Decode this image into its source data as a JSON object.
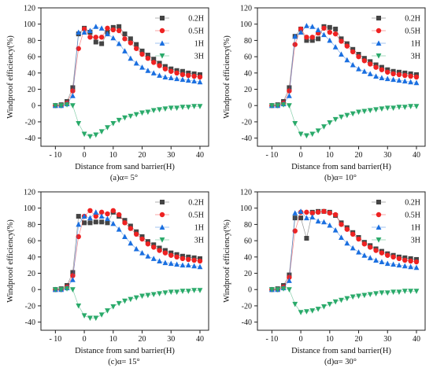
{
  "figure": {
    "colors": {
      "s02H": "#444444",
      "s05H": "#ee2222",
      "s1H": "#1a6fe0",
      "s3H": "#2aaa6a"
    }
  },
  "chart_data": [
    {
      "type": "line",
      "panel": "a",
      "caption": "(a)α= 5°",
      "xlabel": "Distance from sand barrier(H)",
      "ylabel": "Windproof efficiency(%)",
      "xlim": [
        -15,
        43
      ],
      "ylim": [
        -50,
        120
      ],
      "xticks": [
        -10,
        0,
        10,
        20,
        30,
        40
      ],
      "yticks": [
        -40,
        -20,
        0,
        20,
        40,
        60,
        80,
        100,
        120
      ],
      "legend_position": "top-right",
      "x": [
        -10,
        -8,
        -6,
        -4,
        -2,
        0,
        2,
        4,
        6,
        8,
        10,
        12,
        14,
        16,
        18,
        20,
        22,
        24,
        26,
        28,
        30,
        32,
        34,
        36,
        38,
        40
      ],
      "series": [
        {
          "name": "0.2H",
          "marker": "square",
          "color": "#444444",
          "values": [
            0,
            1,
            5,
            22,
            88,
            95,
            90,
            78,
            76,
            90,
            96,
            97,
            88,
            82,
            75,
            67,
            62,
            57,
            52,
            48,
            45,
            43,
            42,
            40,
            39,
            38
          ]
        },
        {
          "name": "0.5H",
          "marker": "circle",
          "color": "#ee2222",
          "values": [
            0,
            0,
            3,
            18,
            70,
            94,
            84,
            84,
            84,
            95,
            93,
            92,
            82,
            77,
            70,
            63,
            58,
            53,
            49,
            45,
            42,
            40,
            38,
            37,
            36,
            35
          ]
        },
        {
          "name": "1H",
          "marker": "triangle-up",
          "color": "#1a6fe0",
          "values": [
            0,
            0,
            2,
            12,
            90,
            90,
            92,
            97,
            95,
            88,
            83,
            76,
            67,
            58,
            52,
            47,
            43,
            40,
            37,
            35,
            34,
            33,
            32,
            31,
            30,
            29
          ]
        },
        {
          "name": "3H",
          "marker": "triangle-down",
          "color": "#2aaa6a",
          "values": [
            0,
            0,
            1,
            0,
            -22,
            -35,
            -38,
            -36,
            -32,
            -27,
            -22,
            -18,
            -15,
            -13,
            -11,
            -9,
            -8,
            -6,
            -5,
            -4,
            -3,
            -3,
            -2,
            -2,
            -1,
            -1
          ]
        }
      ]
    },
    {
      "type": "line",
      "panel": "b",
      "caption": "(b)α= 10°",
      "xlabel": "Distance from sand barrier(H)",
      "ylabel": "Windproof efficiency(%)",
      "xlim": [
        -15,
        43
      ],
      "ylim": [
        -50,
        120
      ],
      "xticks": [
        -10,
        0,
        10,
        20,
        30,
        40
      ],
      "yticks": [
        -40,
        -20,
        0,
        20,
        40,
        60,
        80,
        100,
        120
      ],
      "legend_position": "top-right",
      "x": [
        -10,
        -8,
        -6,
        -4,
        -2,
        0,
        2,
        4,
        6,
        8,
        10,
        12,
        14,
        16,
        18,
        20,
        22,
        24,
        26,
        28,
        30,
        32,
        34,
        36,
        38,
        40
      ],
      "series": [
        {
          "name": "0.2H",
          "marker": "square",
          "color": "#444444",
          "values": [
            0,
            1,
            5,
            22,
            85,
            94,
            80,
            80,
            82,
            97,
            96,
            94,
            82,
            76,
            69,
            63,
            58,
            54,
            50,
            47,
            44,
            42,
            41,
            40,
            39,
            38
          ]
        },
        {
          "name": "0.5H",
          "marker": "circle",
          "color": "#ee2222",
          "values": [
            0,
            0,
            3,
            18,
            75,
            94,
            84,
            84,
            89,
            95,
            90,
            88,
            79,
            73,
            66,
            60,
            55,
            51,
            47,
            44,
            41,
            39,
            38,
            37,
            36,
            35
          ]
        },
        {
          "name": "1H",
          "marker": "triangle-up",
          "color": "#1a6fe0",
          "values": [
            0,
            0,
            2,
            12,
            85,
            90,
            98,
            97,
            93,
            87,
            80,
            72,
            63,
            56,
            50,
            45,
            42,
            39,
            36,
            34,
            33,
            32,
            31,
            30,
            29,
            28
          ]
        },
        {
          "name": "3H",
          "marker": "triangle-down",
          "color": "#2aaa6a",
          "values": [
            0,
            0,
            1,
            0,
            -22,
            -35,
            -37,
            -35,
            -31,
            -26,
            -21,
            -17,
            -14,
            -12,
            -10,
            -8,
            -7,
            -6,
            -5,
            -4,
            -3,
            -3,
            -2,
            -2,
            -1,
            -1
          ]
        }
      ]
    },
    {
      "type": "line",
      "panel": "c",
      "caption": "(c)α= 15°",
      "xlabel": "Distance from sand barrier(H)",
      "ylabel": "Windproof efficiency(%)",
      "xlim": [
        -15,
        43
      ],
      "ylim": [
        -50,
        120
      ],
      "xticks": [
        -10,
        0,
        10,
        20,
        30,
        40
      ],
      "yticks": [
        -40,
        -20,
        0,
        20,
        40,
        60,
        80,
        100,
        120
      ],
      "legend_position": "top-right",
      "x": [
        -10,
        -8,
        -6,
        -4,
        -2,
        0,
        2,
        4,
        6,
        8,
        10,
        12,
        14,
        16,
        18,
        20,
        22,
        24,
        26,
        28,
        30,
        32,
        34,
        36,
        38,
        40
      ],
      "series": [
        {
          "name": "0.2H",
          "marker": "square",
          "color": "#444444",
          "values": [
            0,
            1,
            5,
            21,
            90,
            82,
            82,
            83,
            83,
            82,
            95,
            90,
            85,
            78,
            71,
            65,
            59,
            55,
            51,
            48,
            45,
            43,
            41,
            40,
            39,
            38
          ]
        },
        {
          "name": "0.5H",
          "marker": "circle",
          "color": "#ee2222",
          "values": [
            0,
            0,
            3,
            17,
            65,
            90,
            97,
            90,
            95,
            93,
            97,
            92,
            82,
            75,
            68,
            62,
            56,
            52,
            48,
            45,
            42,
            40,
            38,
            37,
            36,
            35
          ]
        },
        {
          "name": "1H",
          "marker": "triangle-up",
          "color": "#1a6fe0",
          "values": [
            0,
            0,
            2,
            12,
            80,
            90,
            88,
            95,
            90,
            87,
            81,
            74,
            65,
            57,
            50,
            45,
            41,
            38,
            35,
            33,
            32,
            31,
            30,
            30,
            29,
            28
          ]
        },
        {
          "name": "3H",
          "marker": "triangle-down",
          "color": "#2aaa6a",
          "values": [
            0,
            0,
            1,
            0,
            -20,
            -32,
            -35,
            -35,
            -31,
            -26,
            -21,
            -17,
            -14,
            -12,
            -10,
            -8,
            -7,
            -6,
            -5,
            -4,
            -3,
            -3,
            -2,
            -2,
            -1,
            -1
          ]
        }
      ]
    },
    {
      "type": "line",
      "panel": "d",
      "caption": "(d)α= 30°",
      "xlabel": "Distance from sand barrier(H)",
      "ylabel": "Windproof efficiency(%)",
      "xlim": [
        -15,
        43
      ],
      "ylim": [
        -50,
        120
      ],
      "xticks": [
        -10,
        0,
        10,
        20,
        30,
        40
      ],
      "yticks": [
        -40,
        -20,
        0,
        20,
        40,
        60,
        80,
        100,
        120
      ],
      "legend_position": "top-right",
      "x": [
        -10,
        -8,
        -6,
        -4,
        -2,
        0,
        2,
        4,
        6,
        8,
        10,
        12,
        14,
        16,
        18,
        20,
        22,
        24,
        26,
        28,
        30,
        32,
        34,
        36,
        38,
        40
      ],
      "series": [
        {
          "name": "0.2H",
          "marker": "square",
          "color": "#444444",
          "values": [
            0,
            1,
            5,
            18,
            88,
            88,
            63,
            95,
            96,
            96,
            95,
            91,
            82,
            76,
            70,
            64,
            58,
            54,
            50,
            47,
            44,
            42,
            40,
            39,
            38,
            37
          ]
        },
        {
          "name": "0.5H",
          "marker": "circle",
          "color": "#ee2222",
          "values": [
            0,
            0,
            3,
            15,
            72,
            95,
            95,
            94,
            95,
            96,
            94,
            92,
            80,
            74,
            68,
            62,
            56,
            52,
            48,
            45,
            42,
            40,
            38,
            36,
            35,
            34
          ]
        },
        {
          "name": "1H",
          "marker": "triangle-up",
          "color": "#1a6fe0",
          "values": [
            0,
            0,
            2,
            11,
            94,
            96,
            88,
            89,
            84,
            83,
            79,
            73,
            64,
            57,
            51,
            46,
            42,
            39,
            36,
            34,
            32,
            31,
            30,
            29,
            28,
            27
          ]
        },
        {
          "name": "3H",
          "marker": "triangle-down",
          "color": "#2aaa6a",
          "values": [
            0,
            0,
            1,
            0,
            -18,
            -28,
            -27,
            -26,
            -24,
            -21,
            -18,
            -15,
            -13,
            -11,
            -9,
            -8,
            -7,
            -6,
            -5,
            -4,
            -4,
            -3,
            -3,
            -2,
            -2,
            -2
          ]
        }
      ]
    }
  ]
}
